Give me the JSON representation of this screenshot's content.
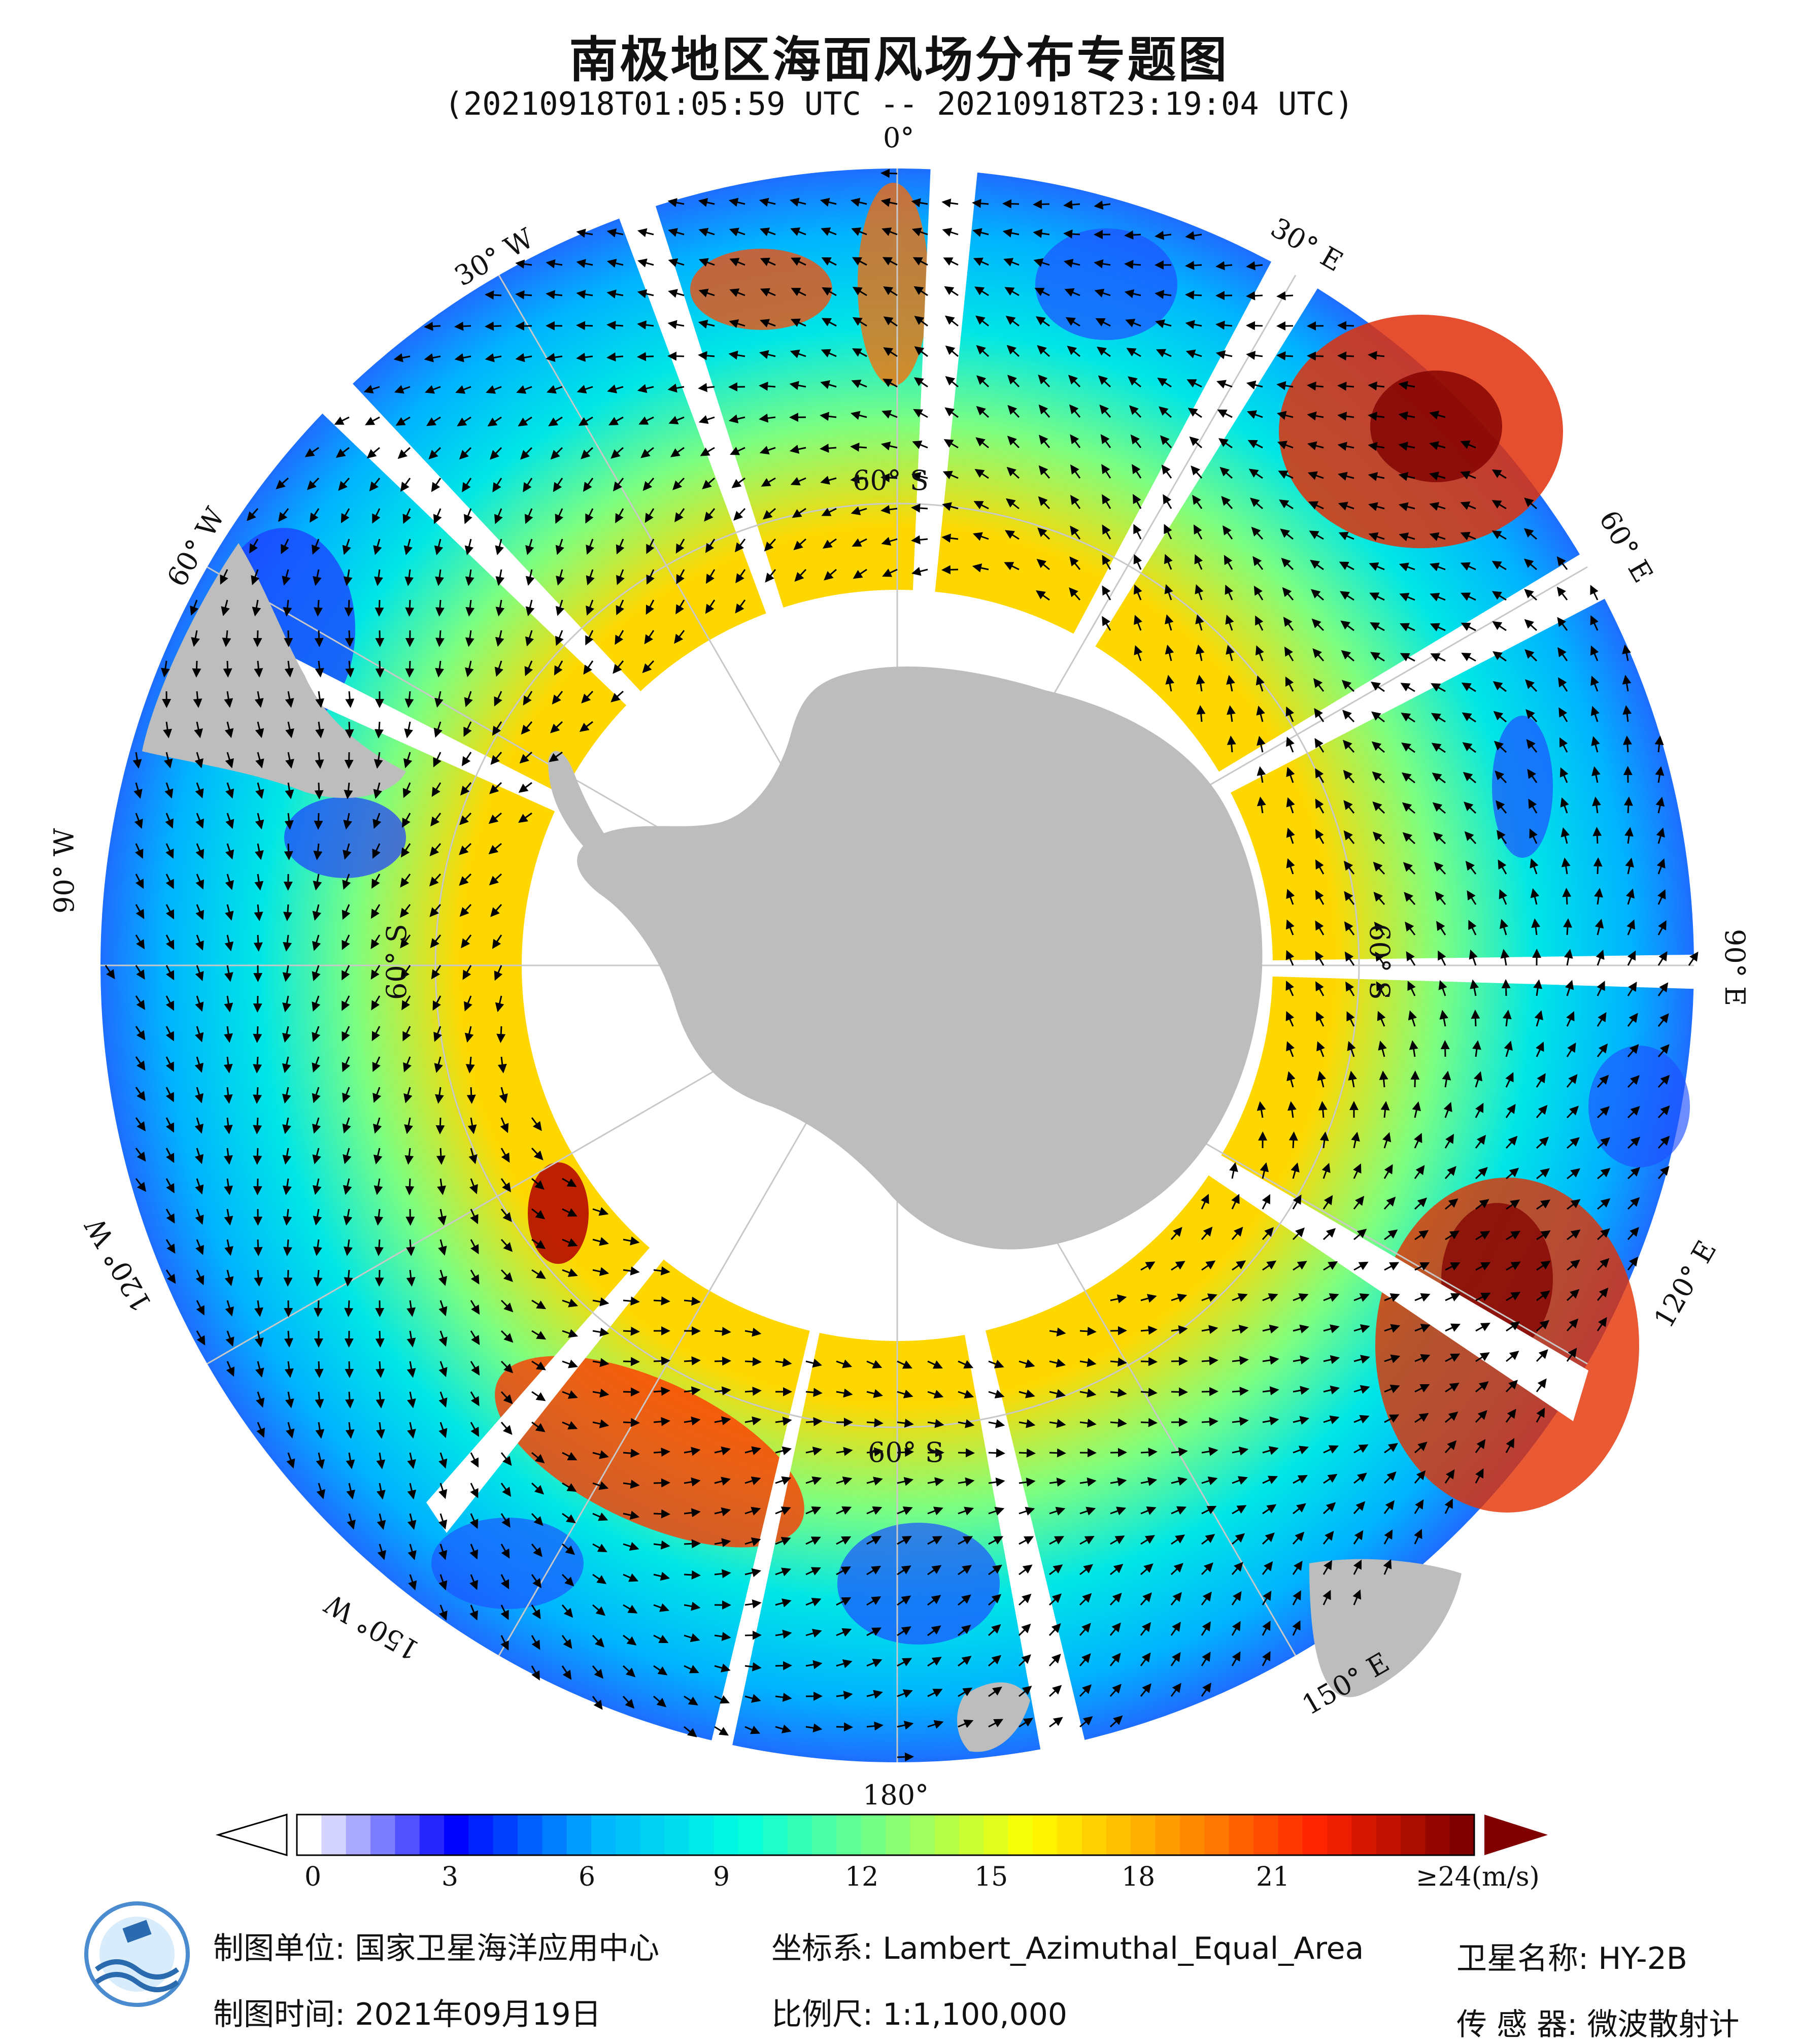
{
  "title": "南极地区海面风场分布专题图",
  "subtitle": "(20210918T01:05:59 UTC -- 20210918T23:19:04 UTC)",
  "map": {
    "longitude_labels": [
      "0°",
      "30° E",
      "60° E",
      "90° E",
      "120° E",
      "150° E",
      "180°",
      "150° W",
      "120° W",
      "90° W",
      "60° W",
      "30° W"
    ],
    "latitude_labels": [
      "60° S",
      "60° S",
      "60° S",
      "60° S"
    ],
    "land_color": "#bdbdbd",
    "graticule_color": "#c8c8c8"
  },
  "colorbar": {
    "ticks": [
      "0",
      "3",
      "6",
      "9",
      "12",
      "15",
      "18",
      "21",
      "≥24(m/s)"
    ],
    "colors": [
      "#ffffff",
      "#0000ff",
      "#00b4ff",
      "#00ffe0",
      "#7fff7f",
      "#ffff00",
      "#ff9900",
      "#ff2200",
      "#800000"
    ]
  },
  "footer": {
    "unit_label": "制图单位:",
    "unit_value": "国家卫星海洋应用中心",
    "time_label": "制图时间:",
    "time_value": "2021年09月19日",
    "crs_label": "坐标系:",
    "crs_value": "Lambert_Azimuthal_Equal_Area",
    "scale_label": "比例尺:",
    "scale_value": "1:1,100,000",
    "satellite_label": "卫星名称:",
    "satellite_value": "HY-2B",
    "sensor_label": "传 感 器:",
    "sensor_value": "微波散射计"
  }
}
